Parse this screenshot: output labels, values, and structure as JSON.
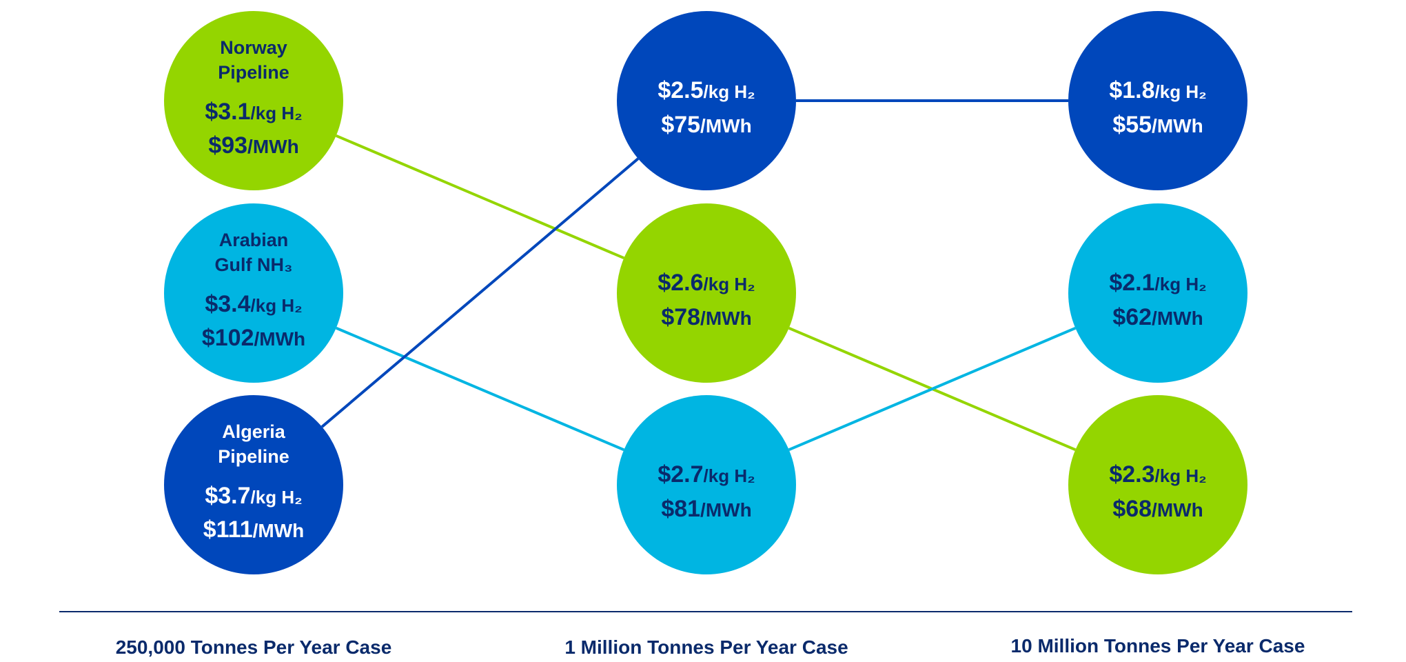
{
  "colors": {
    "navy": "#0047bb",
    "sky": "#00b5e2",
    "lime": "#94d500",
    "text_dark": "#0a2a6b",
    "text_light": "#ffffff",
    "rule": "#0a2a6b"
  },
  "columns": [
    {
      "label": "250,000 Tonnes Per Year Case"
    },
    {
      "label": "1 Million Tonnes Per Year Case"
    },
    {
      "label": "10 Million Tonnes Per Year Case"
    }
  ],
  "routes": [
    {
      "name": "Norway Pipeline",
      "color": "lime",
      "ranks": [
        1,
        2,
        3
      ],
      "values": [
        {
          "kg_value": "$3.1",
          "mwh_value": "$93"
        },
        {
          "kg_value": "$2.6",
          "mwh_value": "$78"
        },
        {
          "kg_value": "$2.3",
          "mwh_value": "$68"
        }
      ]
    },
    {
      "name": "Arabian Gulf NH₃",
      "color": "sky",
      "ranks": [
        2,
        3,
        2
      ],
      "values": [
        {
          "kg_value": "$3.4",
          "mwh_value": "$102"
        },
        {
          "kg_value": "$2.7",
          "mwh_value": "$81"
        },
        {
          "kg_value": "$2.1",
          "mwh_value": "$62"
        }
      ]
    },
    {
      "name": "Algeria Pipeline",
      "color": "navy",
      "ranks": [
        3,
        1,
        1
      ],
      "values": [
        {
          "kg_value": "$3.7",
          "mwh_value": "$111"
        },
        {
          "kg_value": "$2.5",
          "mwh_value": "$75"
        },
        {
          "kg_value": "$1.8",
          "mwh_value": "$55"
        }
      ]
    }
  ],
  "first_column_names": [
    [
      "Norway",
      "Pipeline"
    ],
    [
      "Arabian",
      "Gulf NH₃"
    ],
    [
      "Algeria",
      "Pipeline"
    ]
  ],
  "units": {
    "kg": "/kg H₂",
    "mwh": "/MWh"
  }
}
